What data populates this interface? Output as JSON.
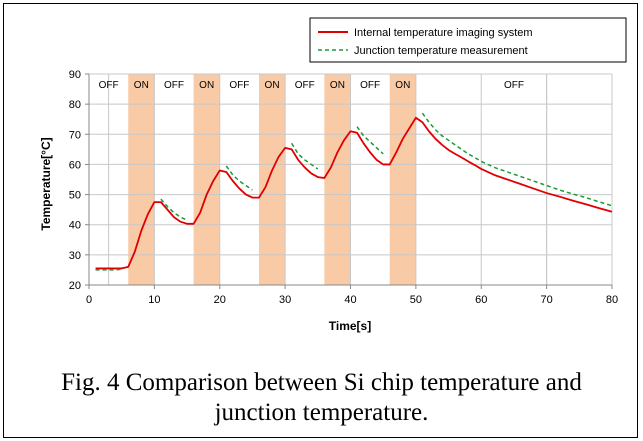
{
  "chart_data": {
    "type": "line",
    "xlabel": "Time[s]",
    "ylabel": "Temperature[°C]",
    "xlim": [
      0,
      80
    ],
    "ylim": [
      20,
      90
    ],
    "xticks": [
      0,
      10,
      20,
      30,
      40,
      50,
      60,
      70,
      80
    ],
    "yticks": [
      20,
      30,
      40,
      50,
      60,
      70,
      80,
      90
    ],
    "grid": true,
    "legend_position": "top-right",
    "state_band": {
      "on_intervals": [
        [
          6,
          10
        ],
        [
          16,
          20
        ],
        [
          26,
          30
        ],
        [
          36,
          40
        ],
        [
          46,
          50
        ]
      ],
      "dividers": [
        3,
        70
      ],
      "labels": [
        {
          "text": "OFF",
          "x": 3
        },
        {
          "text": "ON",
          "x": 8
        },
        {
          "text": "OFF",
          "x": 13
        },
        {
          "text": "ON",
          "x": 18
        },
        {
          "text": "OFF",
          "x": 23
        },
        {
          "text": "ON",
          "x": 28
        },
        {
          "text": "OFF",
          "x": 33
        },
        {
          "text": "ON",
          "x": 38
        },
        {
          "text": "OFF",
          "x": 43
        },
        {
          "text": "ON",
          "x": 48
        },
        {
          "text": "OFF",
          "x": 65
        }
      ],
      "on_color": "#f8cba6"
    },
    "series": [
      {
        "name": "Internal temperature imaging system",
        "color": "#e00000",
        "dash": "solid",
        "points": [
          [
            1,
            25.5
          ],
          [
            2,
            25.5
          ],
          [
            3,
            25.5
          ],
          [
            4,
            25.5
          ],
          [
            5,
            25.5
          ],
          [
            6,
            26
          ],
          [
            7,
            31
          ],
          [
            8,
            38
          ],
          [
            9,
            43.5
          ],
          [
            10,
            47.5
          ],
          [
            11,
            47.5
          ],
          [
            12,
            45
          ],
          [
            13,
            42.5
          ],
          [
            14,
            41
          ],
          [
            15,
            40.3
          ],
          [
            16,
            40.3
          ],
          [
            17,
            44
          ],
          [
            18,
            50
          ],
          [
            19,
            54.5
          ],
          [
            20,
            58
          ],
          [
            21,
            57.5
          ],
          [
            22,
            54.5
          ],
          [
            23,
            52
          ],
          [
            24,
            50
          ],
          [
            25,
            49
          ],
          [
            26,
            49
          ],
          [
            27,
            52.5
          ],
          [
            28,
            58
          ],
          [
            29,
            62.5
          ],
          [
            30,
            65.5
          ],
          [
            31,
            65
          ],
          [
            32,
            61.5
          ],
          [
            33,
            59
          ],
          [
            34,
            57
          ],
          [
            35,
            55.8
          ],
          [
            36,
            55.5
          ],
          [
            37,
            59
          ],
          [
            38,
            64
          ],
          [
            39,
            68
          ],
          [
            40,
            71
          ],
          [
            41,
            70.5
          ],
          [
            42,
            67
          ],
          [
            43,
            64
          ],
          [
            44,
            61.5
          ],
          [
            45,
            60
          ],
          [
            46,
            60
          ],
          [
            47,
            64
          ],
          [
            48,
            68.5
          ],
          [
            49,
            72
          ],
          [
            50,
            75.5
          ],
          [
            51,
            74
          ],
          [
            52,
            71
          ],
          [
            53,
            68.5
          ],
          [
            54,
            66.5
          ],
          [
            55,
            64.8
          ],
          [
            56,
            63.5
          ],
          [
            57,
            62.3
          ],
          [
            58,
            61
          ],
          [
            59,
            59.8
          ],
          [
            60,
            58.5
          ],
          [
            62,
            56.5
          ],
          [
            64,
            55
          ],
          [
            66,
            53.5
          ],
          [
            68,
            52
          ],
          [
            70,
            50.5
          ],
          [
            72,
            49.3
          ],
          [
            74,
            48
          ],
          [
            76,
            46.8
          ],
          [
            78,
            45.5
          ],
          [
            80,
            44.3
          ]
        ]
      },
      {
        "name": "Junction temperature measurement",
        "color": "#1a9a3a",
        "dash": "dashed",
        "segments": [
          [
            [
              1,
              25
            ],
            [
              2,
              25
            ],
            [
              3,
              25
            ],
            [
              4,
              25
            ],
            [
              5,
              25.2
            ]
          ],
          [
            [
              11,
              48.5
            ],
            [
              12,
              46
            ],
            [
              13,
              44
            ],
            [
              14,
              42.5
            ],
            [
              15,
              41.5
            ]
          ],
          [
            [
              21,
              59.5
            ],
            [
              22,
              56.5
            ],
            [
              23,
              54.5
            ],
            [
              24,
              53
            ],
            [
              25,
              51.5
            ]
          ],
          [
            [
              31,
              67
            ],
            [
              32,
              63.5
            ],
            [
              33,
              61.5
            ],
            [
              34,
              60
            ],
            [
              35,
              58.5
            ]
          ],
          [
            [
              41,
              72.5
            ],
            [
              42,
              69.5
            ],
            [
              43,
              67.5
            ],
            [
              44,
              65.5
            ],
            [
              45,
              63.5
            ]
          ],
          [
            [
              51,
              77
            ],
            [
              52,
              74
            ],
            [
              53,
              71.5
            ],
            [
              54,
              69.5
            ],
            [
              55,
              68
            ],
            [
              56,
              66.5
            ],
            [
              57,
              65
            ],
            [
              58,
              63.5
            ],
            [
              59,
              62.3
            ],
            [
              60,
              61
            ],
            [
              62,
              59
            ],
            [
              64,
              57.5
            ],
            [
              66,
              56
            ],
            [
              68,
              54.5
            ],
            [
              70,
              53
            ],
            [
              72,
              51.5
            ],
            [
              74,
              50.2
            ],
            [
              76,
              49
            ],
            [
              78,
              47.6
            ],
            [
              80,
              46.3
            ]
          ]
        ]
      }
    ]
  },
  "caption": {
    "line1": "Fig. 4 Comparison between Si chip temperature and",
    "line2": "junction temperature."
  }
}
